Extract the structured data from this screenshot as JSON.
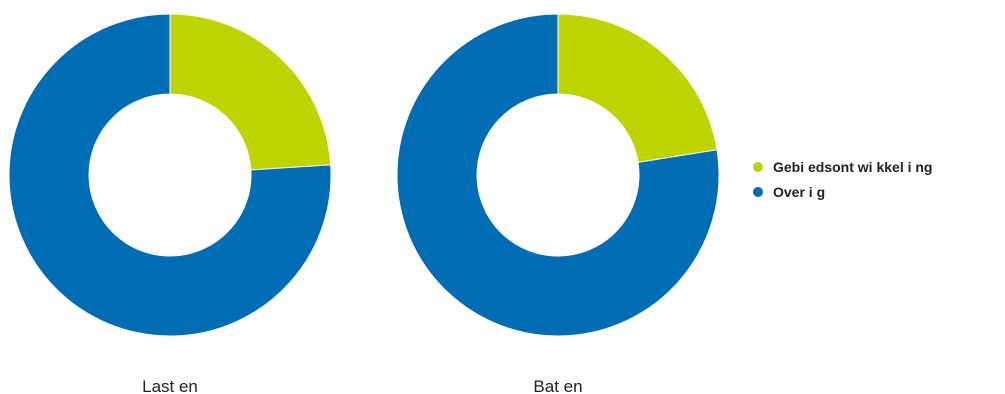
{
  "chart_data": {
    "type": "pie",
    "donut": true,
    "categories": [
      "Gebi edsont wi kkel i ng",
      "Over i g"
    ],
    "colors": {
      "Gebi edsont wi kkel i ng": "#BDD400",
      "Over i g": "#006CB4"
    },
    "charts": [
      {
        "label": "Last en",
        "values": [
          24,
          76
        ]
      },
      {
        "label": "Bat en",
        "values": [
          22.5,
          77.5
        ]
      }
    ],
    "legend": {
      "position": "right"
    }
  }
}
